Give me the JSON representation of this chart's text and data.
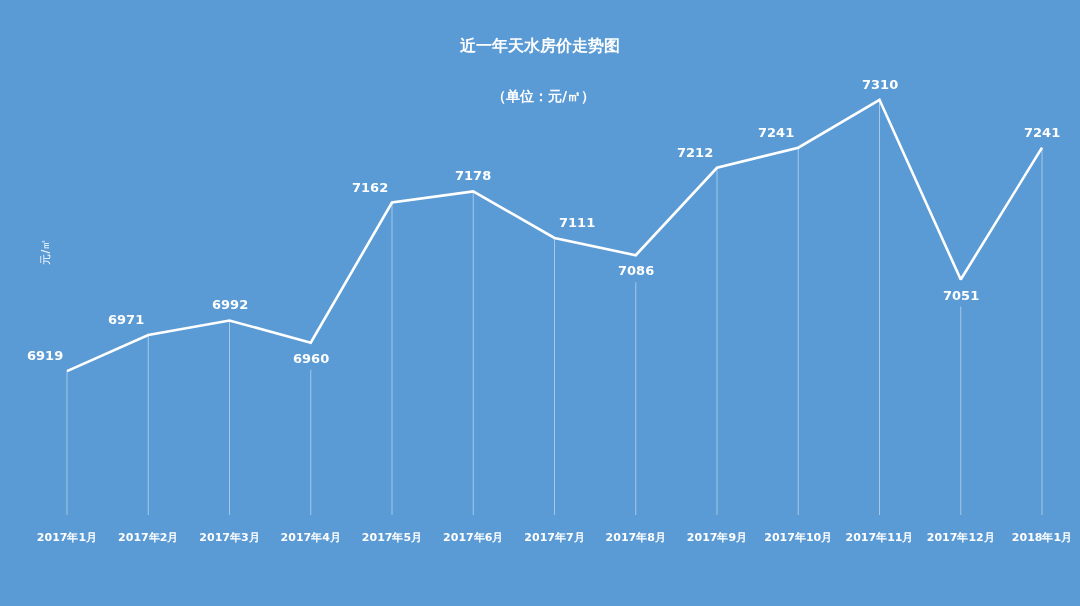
{
  "chart_data": {
    "type": "line",
    "title": "近一年天水房价走势图",
    "subtitle": "（单位：元/㎡）",
    "ylabel": "元/㎡",
    "categories": [
      "2017年1月",
      "2017年2月",
      "2017年3月",
      "2017年4月",
      "2017年5月",
      "2017年6月",
      "2017年7月",
      "2017年8月",
      "2017年9月",
      "2017年10月",
      "2017年11月",
      "2017年12月",
      "2018年1月"
    ],
    "series": [
      {
        "color": "#ffffff",
        "values": [
          6919,
          6971,
          6992,
          6960,
          7162,
          7178,
          7111,
          7086,
          7212,
          7241,
          7310,
          7051,
          7241
        ]
      }
    ],
    "data_labels": true,
    "grid": "x",
    "marker": "none",
    "line_style": "solid",
    "tick_labels": "x"
  }
}
